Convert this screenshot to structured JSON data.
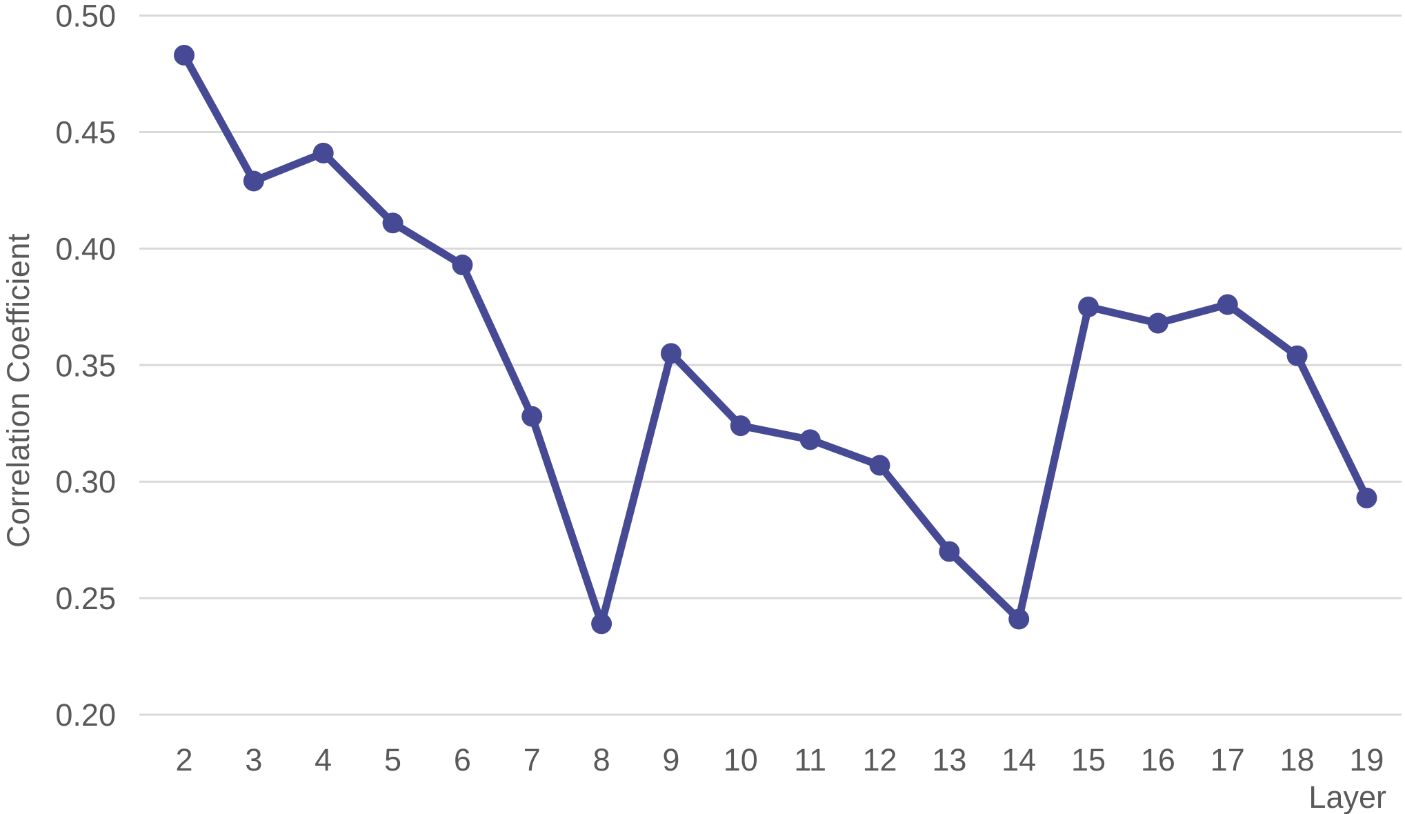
{
  "chart_data": {
    "type": "line",
    "title": "",
    "xlabel": "Layer",
    "ylabel": "Correlation Coefficient",
    "categories": [
      "2",
      "3",
      "4",
      "5",
      "6",
      "7",
      "8",
      "9",
      "10",
      "11",
      "12",
      "13",
      "14",
      "15",
      "16",
      "17",
      "18",
      "19"
    ],
    "series": [
      {
        "name": "Correlation Coefficient",
        "values": [
          0.483,
          0.429,
          0.441,
          0.411,
          0.393,
          0.328,
          0.239,
          0.355,
          0.324,
          0.318,
          0.307,
          0.27,
          0.241,
          0.375,
          0.368,
          0.376,
          0.354,
          0.293
        ]
      }
    ],
    "ylim": [
      0.2,
      0.5
    ],
    "ytick_step": 0.05,
    "ytick_labels": [
      "0.50",
      "0.45",
      "0.40",
      "0.35",
      "0.30",
      "0.25",
      "0.20"
    ],
    "grid": "horizontal",
    "legend": "none",
    "marker": "circle",
    "colors": {
      "line": "#464a94",
      "marker": "#464a94",
      "gridline": "#d9d9d9",
      "axis_text": "#595959",
      "background": "#ffffff"
    }
  }
}
